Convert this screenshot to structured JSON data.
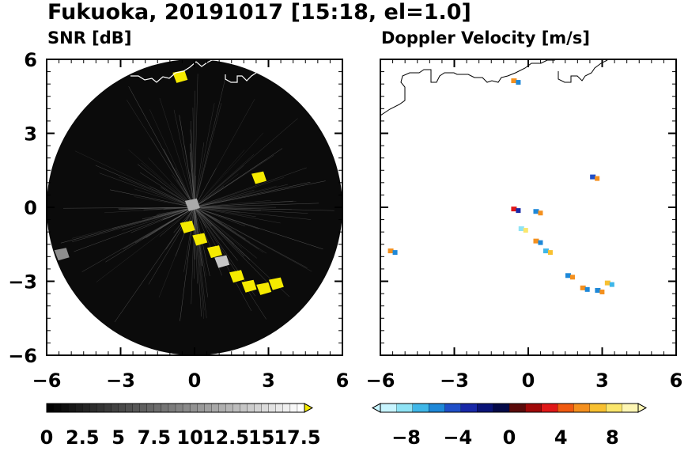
{
  "header": {
    "title": "Fukuoka, 20191017 [15:18, el=1.0]"
  },
  "colors": {
    "radar_background": "#0b0b0b",
    "echo_yellow": "#f5ea00",
    "coast": "#ffffff",
    "coast_right": "#000000"
  },
  "chart_data": [
    {
      "type": "heatmap",
      "subtitle": "SNR [dB]",
      "xlim": [
        -6,
        6
      ],
      "ylim": [
        -6,
        6
      ],
      "xticks": [
        "−6",
        "−3",
        "0",
        "3",
        "6"
      ],
      "yticks": [
        "6",
        "3",
        "0",
        "−3",
        "−6"
      ],
      "colorbar": {
        "ticks": [
          "0",
          "2.5",
          "5",
          "7.5",
          "10",
          "12.5",
          "15",
          "17.5"
        ],
        "range": [
          0,
          18
        ],
        "extend": "max"
      },
      "echoes": [
        {
          "x": 2.6,
          "y": 1.2,
          "snr": 18
        },
        {
          "x": -0.1,
          "y": 0.1,
          "snr": 12
        },
        {
          "x": -0.3,
          "y": -0.8,
          "snr": 18
        },
        {
          "x": 0.2,
          "y": -1.3,
          "snr": 18
        },
        {
          "x": 0.8,
          "y": -1.8,
          "snr": 18
        },
        {
          "x": 1.1,
          "y": -2.2,
          "snr": 14
        },
        {
          "x": 1.7,
          "y": -2.8,
          "snr": 18
        },
        {
          "x": 2.2,
          "y": -3.2,
          "snr": 18
        },
        {
          "x": 2.8,
          "y": -3.3,
          "snr": 18
        },
        {
          "x": 3.3,
          "y": -3.1,
          "snr": 18
        },
        {
          "x": -5.4,
          "y": -1.9,
          "snr": 10
        },
        {
          "x": -0.6,
          "y": 5.3,
          "snr": 16
        }
      ]
    },
    {
      "type": "heatmap",
      "subtitle": "Doppler Velocity [m/s]",
      "xlim": [
        -6,
        6
      ],
      "ylim": [
        -6,
        6
      ],
      "xticks": [
        "−6",
        "−3",
        "0",
        "3",
        "6"
      ],
      "yticks": [
        "6",
        "3",
        "0",
        "−3",
        "−6"
      ],
      "colorbar": {
        "ticks": [
          "−8",
          "−4",
          "0",
          "4",
          "8"
        ],
        "range": [
          -10,
          10
        ],
        "extend": "both"
      },
      "echoes": [
        {
          "x": 2.7,
          "y": 1.2,
          "v": -5
        },
        {
          "x": -0.5,
          "y": -0.1,
          "v": 3
        },
        {
          "x": 0.4,
          "y": -0.2,
          "v": -6
        },
        {
          "x": -0.2,
          "y": -0.9,
          "v": -8
        },
        {
          "x": 0.4,
          "y": -1.4,
          "v": 6
        },
        {
          "x": 0.8,
          "y": -1.8,
          "v": -7
        },
        {
          "x": 1.7,
          "y": -2.8,
          "v": -6
        },
        {
          "x": 2.3,
          "y": -3.3,
          "v": 6
        },
        {
          "x": 2.9,
          "y": -3.4,
          "v": -6
        },
        {
          "x": 3.3,
          "y": -3.1,
          "v": 7
        },
        {
          "x": -5.5,
          "y": -1.8,
          "v": 6
        },
        {
          "x": -0.5,
          "y": 5.1,
          "v": 6
        }
      ]
    }
  ]
}
